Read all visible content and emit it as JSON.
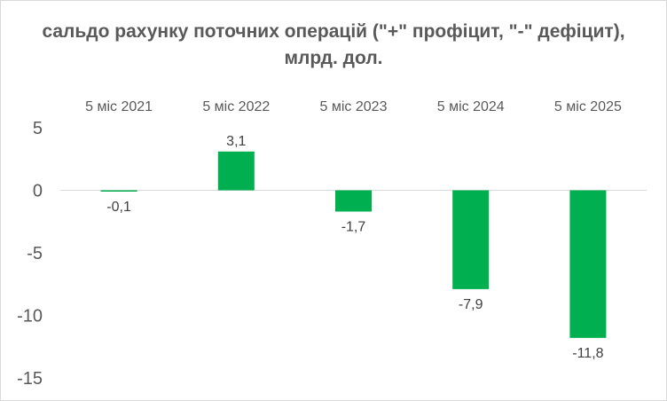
{
  "chart_data": {
    "type": "bar",
    "title": "сальдо рахунку поточних операцій (\"+\" профіцит, \"-\" дефіцит), млрд. дол.",
    "categories": [
      "5 міс 2021",
      "5 міс 2022",
      "5 міс 2023",
      "5 міс 2024",
      "5 міс 2025"
    ],
    "values": [
      -0.1,
      3.1,
      -1.7,
      -7.9,
      -11.8
    ],
    "data_labels": [
      "-0,1",
      "3,1",
      "-1,7",
      "-7,9",
      "-11,8"
    ],
    "y_ticks": [
      5,
      0,
      -5,
      -10,
      -15
    ],
    "y_tick_labels": [
      "5",
      "0",
      "-5",
      "-10",
      "-15"
    ],
    "ylim": [
      -15,
      5
    ],
    "xlabel": "",
    "ylabel": "",
    "category_axis_position": "top",
    "grid": false,
    "legend": "none",
    "bar_color": "#00b050"
  }
}
